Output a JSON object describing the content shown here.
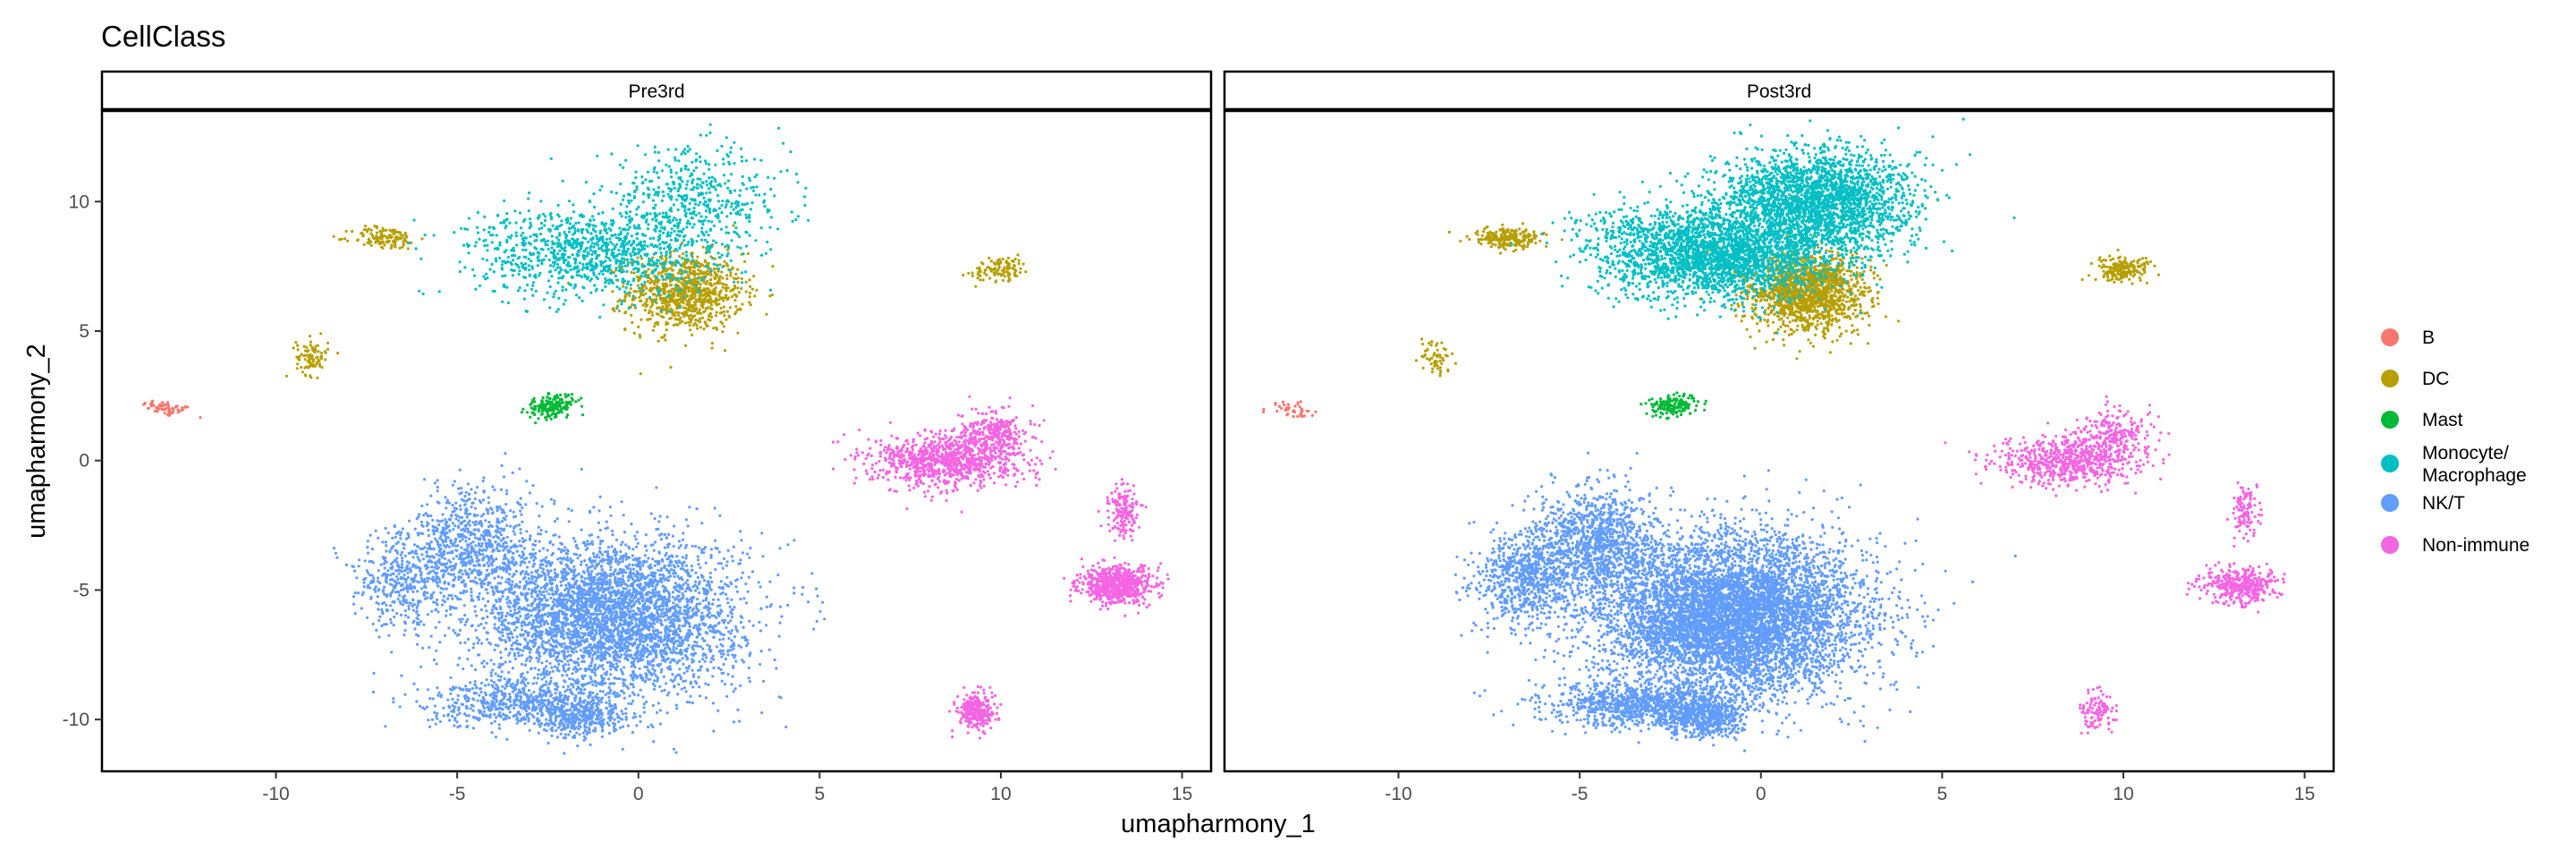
{
  "chart_data": {
    "type": "scatter",
    "title": "CellClass",
    "xlabel": "umapharmony_1",
    "ylabel": "umapharmony_2",
    "xlim": [
      -14.8,
      15.8
    ],
    "ylim": [
      -12,
      13.5
    ],
    "x_ticks": [
      -10,
      -5,
      0,
      5,
      10,
      15
    ],
    "y_ticks": [
      -10,
      -5,
      0,
      5,
      10
    ],
    "grid": false,
    "legend_position": "right",
    "facets": [
      "Pre3rd",
      "Post3rd"
    ],
    "legend": [
      {
        "label": "B",
        "color": "#F8766D"
      },
      {
        "label": "DC",
        "color": "#B79F00"
      },
      {
        "label": "Mast",
        "color": "#00BA38"
      },
      {
        "label": "Monocyte/\nMacrophage",
        "color": "#00BFC4"
      },
      {
        "label": "NK/T",
        "color": "#619CFF"
      },
      {
        "label": "Non-immune",
        "color": "#F564E3"
      }
    ],
    "series": [
      {
        "name": "B",
        "color": "#F8766D",
        "clusters": [
          {
            "cx": -13.0,
            "cy": 2.0,
            "sx": 0.35,
            "sy": 0.14,
            "tilt": -0.25,
            "pre": 60,
            "post": 45
          }
        ]
      },
      {
        "name": "DC",
        "color": "#B79F00",
        "clusters": [
          {
            "cx": 1.3,
            "cy": 6.5,
            "sx": 0.8,
            "sy": 0.75,
            "tilt": 0,
            "pre": 900,
            "post": 1500
          },
          {
            "cx": -7.0,
            "cy": 8.6,
            "sx": 0.45,
            "sy": 0.22,
            "tilt": 0,
            "pre": 130,
            "post": 220
          },
          {
            "cx": 10.0,
            "cy": 7.4,
            "sx": 0.4,
            "sy": 0.22,
            "tilt": 0.2,
            "pre": 110,
            "post": 200
          },
          {
            "cx": -9.0,
            "cy": 4.0,
            "sx": 0.22,
            "sy": 0.35,
            "tilt": 0,
            "pre": 90,
            "post": 60
          }
        ]
      },
      {
        "name": "Mast",
        "color": "#00BA38",
        "clusters": [
          {
            "cx": -2.4,
            "cy": 2.1,
            "sx": 0.35,
            "sy": 0.2,
            "tilt": 0.3,
            "pre": 200,
            "post": 160
          }
        ]
      },
      {
        "name": "Monocyte/\nMacrophage",
        "color": "#00BFC4",
        "clusters": [
          {
            "cx": -1.2,
            "cy": 8.0,
            "sx": 1.6,
            "sy": 0.85,
            "tilt": 0,
            "pre": 1000,
            "post": 2600
          },
          {
            "cx": 1.5,
            "cy": 10.0,
            "sx": 1.3,
            "sy": 1.0,
            "tilt": 0,
            "pre": 500,
            "post": 2400
          },
          {
            "cx": -3.8,
            "cy": 9.0,
            "sx": 0.9,
            "sy": 0.3,
            "tilt": 0,
            "pre": 40,
            "post": 60
          }
        ]
      },
      {
        "name": "NK/T",
        "color": "#619CFF",
        "clusters": [
          {
            "cx": -0.8,
            "cy": -6.0,
            "sx": 1.8,
            "sy": 1.5,
            "tilt": 0,
            "pre": 4000,
            "post": 6500
          },
          {
            "cx": -4.5,
            "cy": -3.2,
            "sx": 0.9,
            "sy": 1.1,
            "tilt": 0,
            "pre": 700,
            "post": 1100
          },
          {
            "cx": -6.5,
            "cy": -4.6,
            "sx": 0.7,
            "sy": 0.9,
            "tilt": 0,
            "pre": 400,
            "post": 700
          },
          {
            "cx": -3.2,
            "cy": -9.4,
            "sx": 1.3,
            "sy": 0.45,
            "tilt": 0,
            "pre": 600,
            "post": 1000
          },
          {
            "cx": -1.5,
            "cy": -9.9,
            "sx": 0.6,
            "sy": 0.4,
            "tilt": 0,
            "pre": 300,
            "post": 500
          }
        ]
      },
      {
        "name": "Non-immune",
        "color": "#F564E3",
        "clusters": [
          {
            "cx": 8.5,
            "cy": 0.0,
            "sx": 1.0,
            "sy": 0.5,
            "tilt": 0,
            "pre": 900,
            "post": 650
          },
          {
            "cx": 9.8,
            "cy": 1.0,
            "sx": 0.5,
            "sy": 0.5,
            "tilt": 0,
            "pre": 300,
            "post": 200
          },
          {
            "cx": 13.2,
            "cy": -4.8,
            "sx": 0.5,
            "sy": 0.35,
            "tilt": 0,
            "pre": 650,
            "post": 380
          },
          {
            "cx": 13.4,
            "cy": -2.0,
            "sx": 0.2,
            "sy": 0.5,
            "tilt": 0,
            "pre": 160,
            "post": 110
          },
          {
            "cx": 9.3,
            "cy": -9.7,
            "sx": 0.25,
            "sy": 0.35,
            "tilt": 0,
            "pre": 280,
            "post": 110
          }
        ]
      }
    ]
  }
}
